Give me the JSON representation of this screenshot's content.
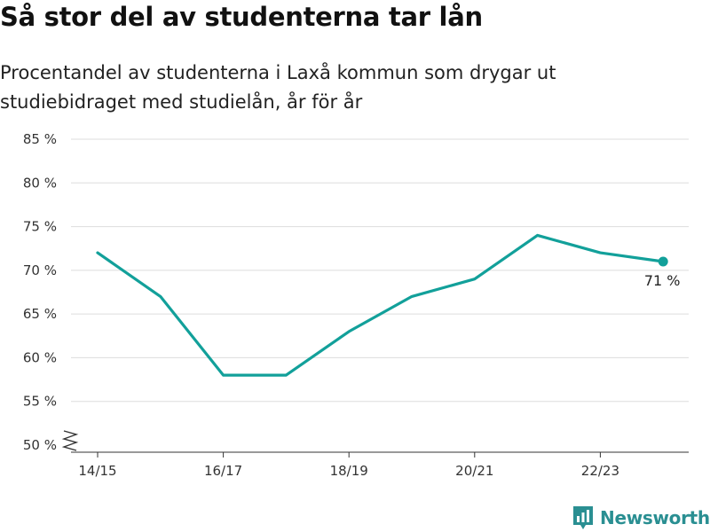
{
  "header": {
    "title": "Så stor del av studenterna tar lån",
    "subtitle": "Procentandel av studenterna i Laxå kommun som drygar ut studiebidraget med studielån, år för år"
  },
  "brand": {
    "name": "Newsworthy",
    "icon": "bar-chart-logo-icon"
  },
  "colors": {
    "line": "#12a09a",
    "grid": "#dddddd",
    "brand": "#2a8f92"
  },
  "chart_data": {
    "type": "line",
    "title": "Så stor del av studenterna tar lån",
    "subtitle": "Procentandel av studenterna i Laxå kommun som drygar ut studiebidraget med studielån, år för år",
    "x": [
      "14/15",
      "15/16",
      "16/17",
      "17/18",
      "18/19",
      "19/20",
      "20/21",
      "21/22",
      "22/23",
      "23/24"
    ],
    "x_tick_labels": [
      "14/15",
      "16/17",
      "18/19",
      "20/21",
      "22/23"
    ],
    "series": [
      {
        "values": [
          72,
          67,
          58,
          58,
          63,
          67,
          69,
          74,
          72,
          71
        ]
      }
    ],
    "y_ticks": [
      50,
      55,
      60,
      65,
      70,
      75,
      80,
      85
    ],
    "y_tick_labels": [
      "50 %",
      "55 %",
      "60 %",
      "65 %",
      "70 %",
      "75 %",
      "80 %",
      "85 %"
    ],
    "ylim": [
      50,
      85
    ],
    "y_axis_break": true,
    "grid": true,
    "end_label": "71 %"
  }
}
